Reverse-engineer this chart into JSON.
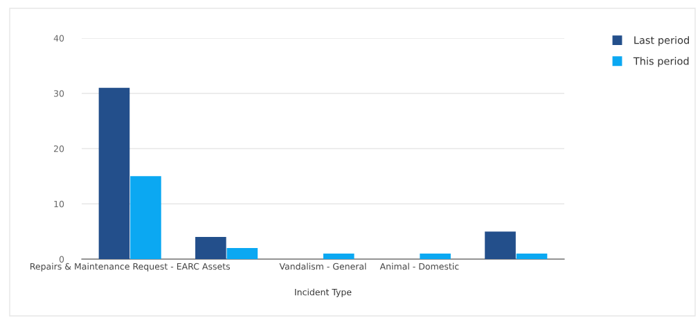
{
  "chart_data": {
    "type": "bar",
    "xlabel": "Incident Type",
    "categories": [
      "Repairs & Maintenance Request - EARC Assets",
      null,
      "Vandalism - General",
      "Animal - Domestic",
      null
    ],
    "series": [
      {
        "name": "Last period",
        "color": "#234f8b",
        "values": [
          31,
          4,
          0,
          0,
          5
        ]
      },
      {
        "name": "This period",
        "color": "#0ba8f2",
        "values": [
          15,
          2,
          1,
          1,
          1
        ]
      }
    ],
    "ylim": [
      0,
      40
    ],
    "yticks": [
      0,
      10,
      20,
      30,
      40
    ],
    "grid": "y",
    "legend": "top right"
  }
}
